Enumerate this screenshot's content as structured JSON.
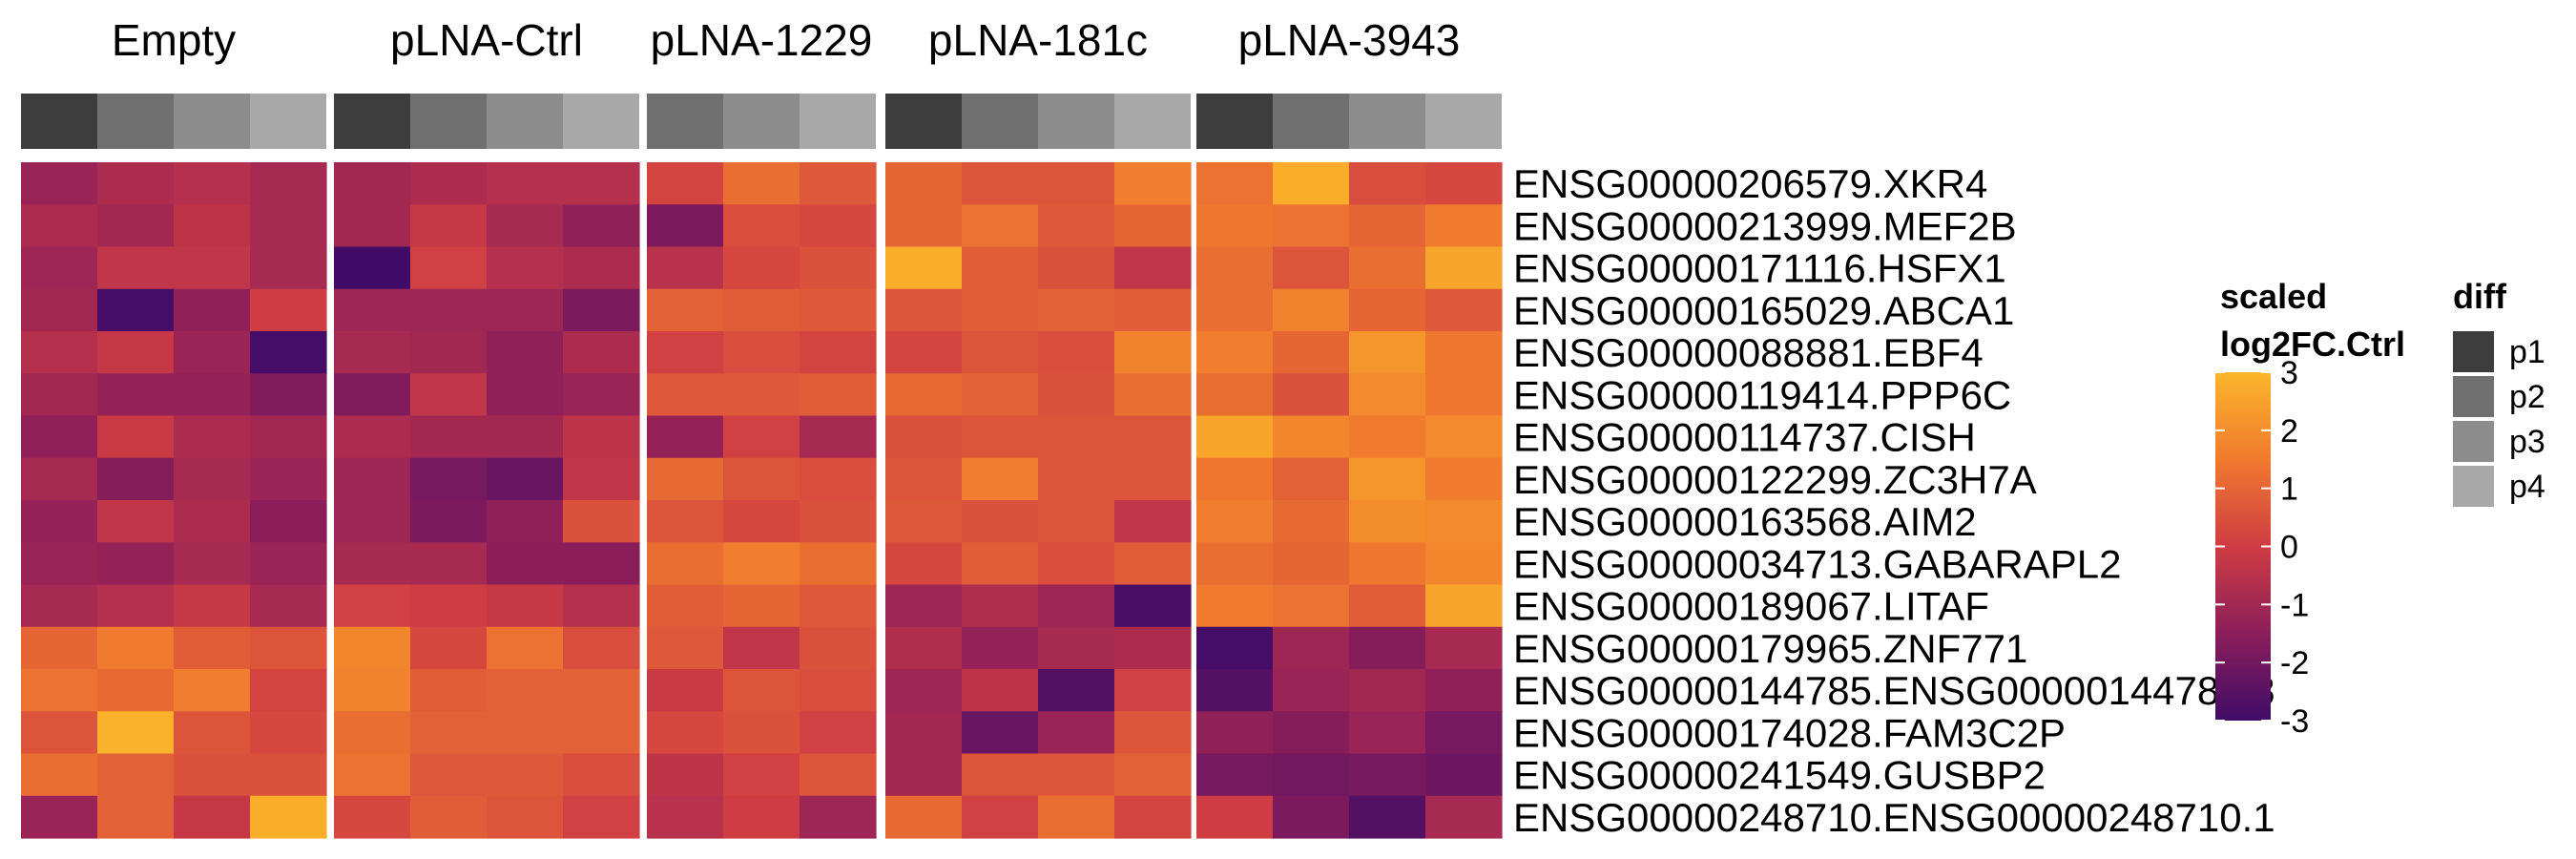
{
  "chart_data": {
    "type": "heatmap",
    "groups": [
      {
        "label": "Empty",
        "samples": [
          "p1",
          "p2",
          "p3",
          "p4"
        ]
      },
      {
        "label": "pLNA-Ctrl",
        "samples": [
          "p1",
          "p2",
          "p3",
          "p4"
        ]
      },
      {
        "label": "pLNA-1229",
        "samples": [
          "p2",
          "p3",
          "p4"
        ]
      },
      {
        "label": "pLNA-181c",
        "samples": [
          "p1",
          "p2",
          "p3",
          "p4"
        ]
      },
      {
        "label": "pLNA-3943",
        "samples": [
          "p1",
          "p2",
          "p3",
          "p4"
        ]
      }
    ],
    "rows": [
      "ENSG00000206579.XKR4",
      "ENSG00000213999.MEF2B",
      "ENSG00000171116.HSFX1",
      "ENSG00000165029.ABCA1",
      "ENSG00000088881.EBF4",
      "ENSG00000119414.PPP6C",
      "ENSG00000114737.CISH",
      "ENSG00000122299.ZC3H7A",
      "ENSG00000163568.AIM2",
      "ENSG00000034713.GABARAPL2",
      "ENSG00000189067.LITAF",
      "ENSG00000179965.ZNF771",
      "ENSG00000144785.ENSG00000144785.8",
      "ENSG00000174028.FAM3C2P",
      "ENSG00000241549.GUSBP2",
      "ENSG00000248710.ENSG00000248710.1"
    ],
    "values": [
      [
        -1.2,
        -0.8,
        -0.6,
        -0.9,
        -1.0,
        -0.8,
        -0.6,
        -0.6,
        0.2,
        1.2,
        0.7,
        1.0,
        0.6,
        0.6,
        1.6,
        1.3,
        2.8,
        0.4,
        0.3
      ],
      [
        -0.8,
        -1.0,
        -0.4,
        -0.9,
        -1.0,
        -0.2,
        -0.9,
        -1.4,
        -1.8,
        0.4,
        0.3,
        1.0,
        1.3,
        0.7,
        1.0,
        1.4,
        1.3,
        1.0,
        1.5
      ],
      [
        -1.1,
        -0.3,
        -0.3,
        -0.9,
        -3.0,
        0.1,
        -0.6,
        -0.8,
        -0.5,
        0.3,
        0.5,
        2.8,
        0.8,
        0.5,
        -0.3,
        1.2,
        0.6,
        1.2,
        2.6
      ],
      [
        -1.0,
        -2.9,
        -1.4,
        0.0,
        -1.1,
        -1.1,
        -1.1,
        -1.8,
        0.9,
        0.8,
        0.7,
        0.6,
        0.8,
        0.9,
        0.8,
        1.2,
        1.7,
        1.0,
        0.7
      ],
      [
        -0.6,
        -0.2,
        -1.2,
        -2.9,
        -0.9,
        -1.0,
        -1.4,
        -0.8,
        0.1,
        0.4,
        0.2,
        0.2,
        0.6,
        0.4,
        1.7,
        1.6,
        1.0,
        2.2,
        1.4
      ],
      [
        -1.0,
        -1.3,
        -1.3,
        -1.7,
        -1.7,
        -0.3,
        -1.4,
        -1.2,
        0.7,
        0.7,
        0.8,
        1.1,
        0.9,
        0.5,
        1.2,
        1.2,
        0.5,
        1.9,
        1.4
      ],
      [
        -1.4,
        -0.1,
        -0.8,
        -1.0,
        -0.8,
        -1.0,
        -1.0,
        -0.4,
        -1.3,
        0.1,
        -0.9,
        0.5,
        0.6,
        0.6,
        0.6,
        2.6,
        1.8,
        1.5,
        1.9
      ],
      [
        -0.9,
        -1.6,
        -0.9,
        -1.2,
        -1.1,
        -1.9,
        -2.2,
        -0.3,
        1.1,
        0.6,
        0.4,
        0.6,
        1.6,
        0.6,
        0.6,
        1.4,
        0.9,
        2.2,
        1.5
      ],
      [
        -1.3,
        -0.3,
        -0.8,
        -1.5,
        -1.1,
        -1.8,
        -1.4,
        0.5,
        0.6,
        0.3,
        0.5,
        0.7,
        0.5,
        0.6,
        -0.3,
        1.6,
        1.1,
        2.0,
        1.9
      ],
      [
        -1.2,
        -1.3,
        -0.9,
        -1.2,
        -0.9,
        -0.9,
        -1.5,
        -1.5,
        1.2,
        1.6,
        1.2,
        0.3,
        0.8,
        0.4,
        0.8,
        1.2,
        1.0,
        1.4,
        1.8
      ],
      [
        -0.9,
        -0.6,
        -0.2,
        -0.9,
        0.1,
        0.0,
        -0.2,
        -0.6,
        0.8,
        1.0,
        0.7,
        -1.1,
        -0.7,
        -1.1,
        -2.8,
        1.5,
        1.3,
        0.8,
        2.6
      ],
      [
        1.0,
        1.5,
        0.8,
        0.6,
        1.8,
        0.3,
        1.3,
        0.4,
        0.7,
        -0.3,
        0.5,
        -0.7,
        -1.3,
        -0.9,
        -0.8,
        -2.9,
        -1.1,
        -1.6,
        -0.9
      ],
      [
        1.3,
        1.1,
        1.6,
        0.2,
        1.7,
        0.8,
        0.9,
        0.9,
        -0.1,
        0.6,
        0.4,
        -1.1,
        -0.4,
        -2.6,
        0.1,
        -2.6,
        -1.2,
        -1.0,
        -1.4
      ],
      [
        0.6,
        2.9,
        0.6,
        0.3,
        1.2,
        0.9,
        0.9,
        0.9,
        0.3,
        0.5,
        0.1,
        -1.0,
        -2.2,
        -1.2,
        0.6,
        -1.4,
        -1.6,
        -1.2,
        -1.9
      ],
      [
        1.2,
        0.9,
        0.5,
        0.5,
        1.3,
        0.7,
        0.7,
        0.4,
        -0.4,
        0.1,
        0.6,
        -1.0,
        0.6,
        0.6,
        0.9,
        -1.9,
        -2.0,
        -1.9,
        -2.1
      ],
      [
        -1.2,
        0.9,
        -0.2,
        2.8,
        0.3,
        0.8,
        0.6,
        0.1,
        -0.5,
        0.0,
        -1.1,
        1.1,
        0.1,
        1.2,
        0.2,
        0.0,
        -1.8,
        -2.6,
        -0.9
      ]
    ],
    "scale": {
      "min": -3,
      "max": 3,
      "palette": [
        "#400c68",
        "#8b1e5a",
        "#cf3c43",
        "#f07a2e",
        "#fbb52b"
      ]
    },
    "legend": {
      "fill_title": [
        "scaled",
        "log2FC.Ctrl"
      ],
      "fill_ticks": [
        3,
        2,
        1,
        0,
        -1,
        -2,
        -3
      ],
      "diff_title": "diff",
      "diff_items": [
        {
          "label": "p1",
          "color": "#3d3d3d"
        },
        {
          "label": "p2",
          "color": "#707070"
        },
        {
          "label": "p3",
          "color": "#8c8c8c"
        },
        {
          "label": "p4",
          "color": "#a8a8a8"
        }
      ]
    }
  }
}
